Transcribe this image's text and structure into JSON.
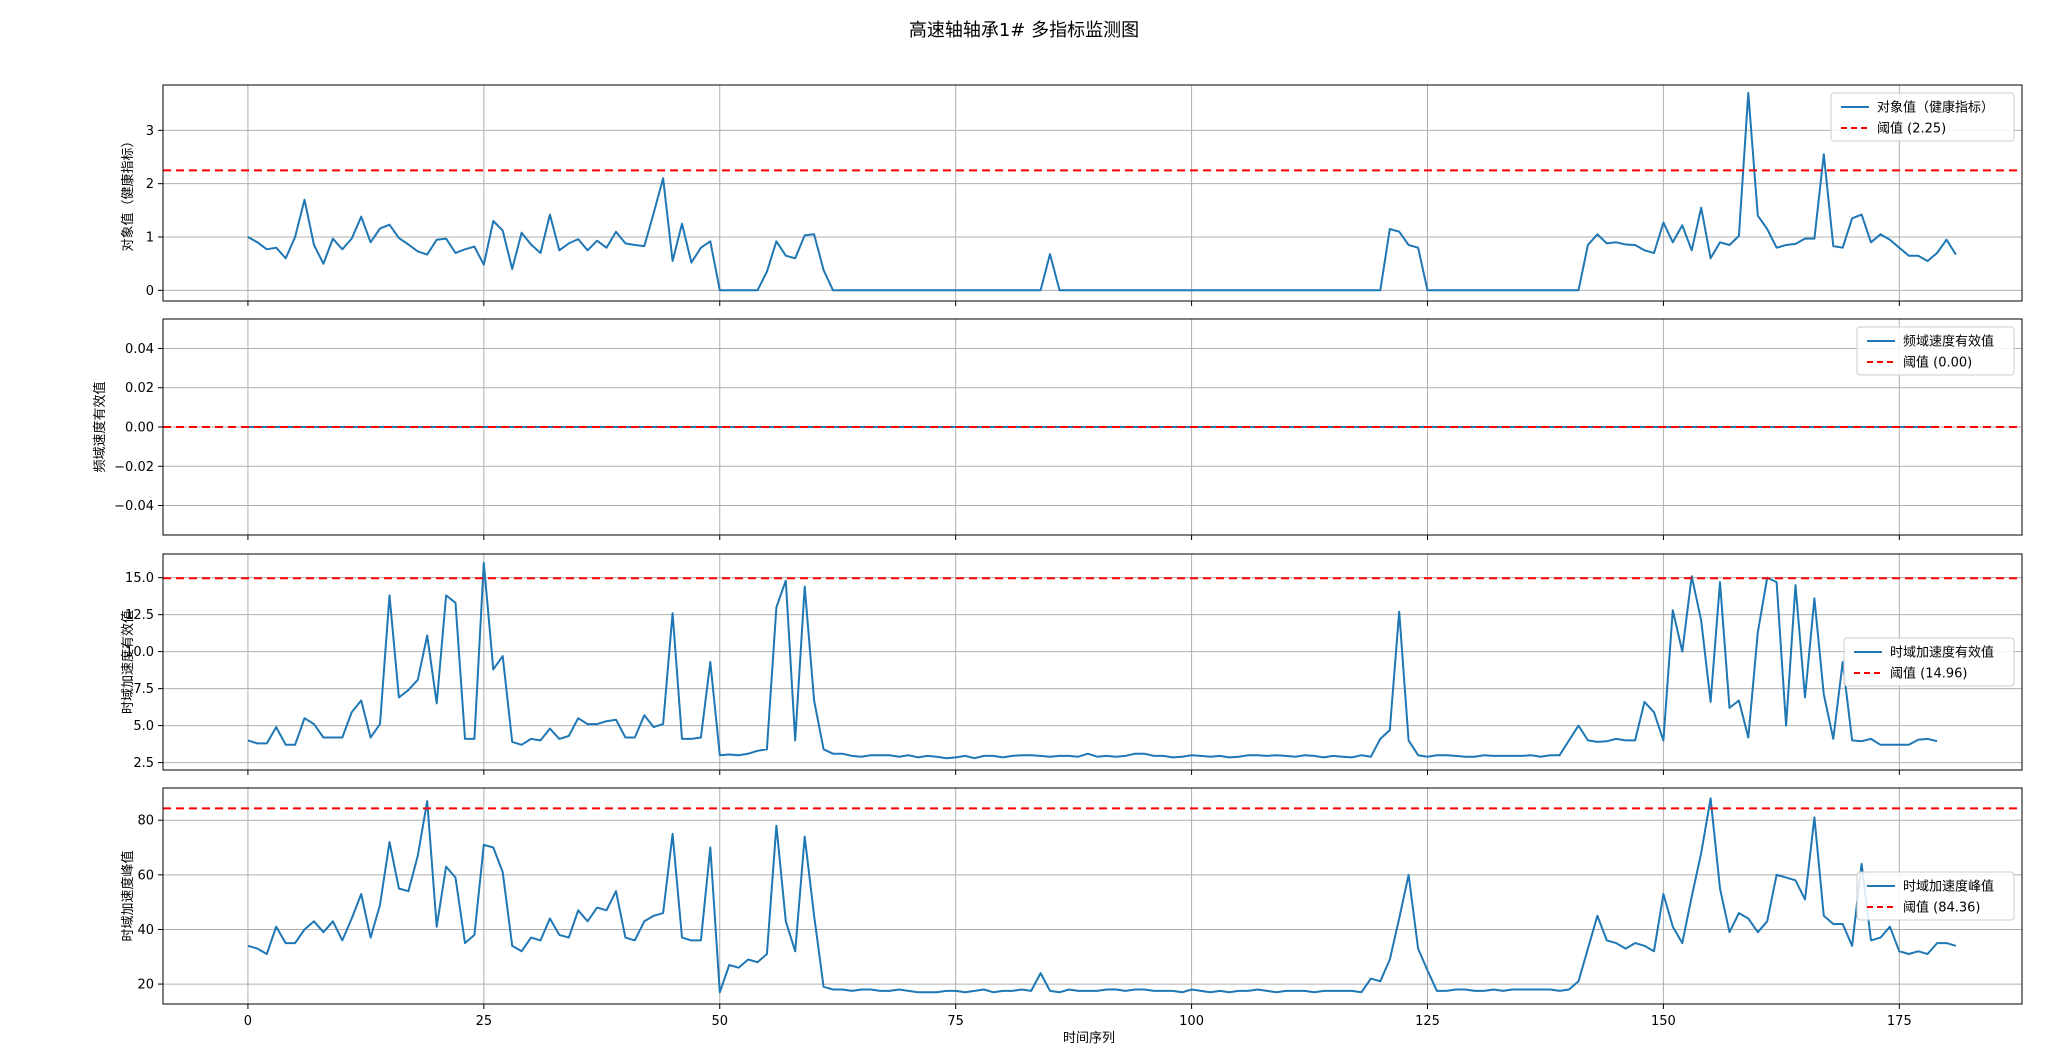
{
  "title": "高速轴轴承1# 多指标监测图",
  "xlabel": "时间序列",
  "colors": {
    "series": "#1f77b4",
    "threshold": "#ff0000",
    "grid": "#b0b0b0"
  },
  "chart_data": [
    {
      "type": "line",
      "ylabel": "对象值（健康指标）",
      "legend_placement": "top-right",
      "series_name": "对象值（健康指标）",
      "threshold": 2.25,
      "threshold_label": "阈值 (2.25)",
      "xlim": [
        -9,
        188
      ],
      "ylim": [
        -0.2,
        3.85
      ],
      "xticks": [
        0,
        25,
        50,
        75,
        100,
        125,
        150,
        175
      ],
      "yticks": [
        0,
        1,
        2,
        3
      ],
      "grid": true,
      "y": [
        1.0,
        0.9,
        0.77,
        0.8,
        0.6,
        1.0,
        1.7,
        0.85,
        0.5,
        0.97,
        0.77,
        0.97,
        1.38,
        0.9,
        1.16,
        1.23,
        0.98,
        0.86,
        0.73,
        0.67,
        0.95,
        0.97,
        0.7,
        0.77,
        0.82,
        0.48,
        1.3,
        1.12,
        0.4,
        1.08,
        0.86,
        0.7,
        1.42,
        0.75,
        0.88,
        0.96,
        0.75,
        0.93,
        0.8,
        1.1,
        0.88,
        0.85,
        0.83,
        1.45,
        2.1,
        0.55,
        1.25,
        0.52,
        0.8,
        0.92,
        0,
        0,
        0,
        0,
        0,
        0.35,
        0.92,
        0.65,
        0.6,
        1.03,
        1.05,
        0.38,
        0,
        0,
        0,
        0,
        0,
        0,
        0,
        0,
        0,
        0,
        0,
        0,
        0,
        0,
        0,
        0,
        0,
        0,
        0,
        0,
        0,
        0,
        0,
        0.68,
        0,
        0,
        0,
        0,
        0,
        0,
        0,
        0,
        0,
        0,
        0,
        0,
        0,
        0,
        0,
        0,
        0,
        0,
        0,
        0,
        0,
        0,
        0,
        0,
        0,
        0,
        0,
        0,
        0,
        0,
        0,
        0,
        0,
        0,
        0,
        1.15,
        1.1,
        0.85,
        0.8,
        0,
        0,
        0,
        0,
        0,
        0,
        0,
        0,
        0,
        0,
        0,
        0,
        0,
        0,
        0,
        0,
        0,
        0.85,
        1.05,
        0.88,
        0.9,
        0.86,
        0.85,
        0.75,
        0.7,
        1.27,
        0.9,
        1.22,
        0.75,
        1.55,
        0.6,
        0.9,
        0.85,
        1.02,
        3.7,
        1.4,
        1.15,
        0.8,
        0.85,
        0.87,
        0.97,
        0.97,
        2.55,
        0.83,
        0.8,
        1.35,
        1.42,
        0.9,
        1.05,
        0.95,
        0.8,
        0.65,
        0.65,
        0.55,
        0.7,
        0.95,
        0.67
      ]
    },
    {
      "type": "line",
      "ylabel": "频域速度有效值",
      "legend_placement": "top-right",
      "series_name": "频域速度有效值",
      "threshold": 0.0,
      "threshold_label": "阈值 (0.00)",
      "xlim": [
        -9,
        188
      ],
      "ylim": [
        -0.055,
        0.055
      ],
      "xticks": [
        0,
        25,
        50,
        75,
        100,
        125,
        150,
        175
      ],
      "yticks": [
        -0.04,
        -0.02,
        0.0,
        0.02,
        0.04
      ],
      "ytick_labels": [
        "−0.04",
        "−0.02",
        "0.00",
        "0.02",
        "0.04"
      ],
      "grid": true,
      "y_constant": 0
    },
    {
      "type": "line",
      "ylabel": "时域加速度有效值",
      "legend_placement": "center-right",
      "series_name": "时域加速度有效值",
      "threshold": 14.96,
      "threshold_label": "阈值 (14.96)",
      "xlim": [
        -9,
        188
      ],
      "ylim": [
        2.0,
        16.6
      ],
      "xticks": [
        0,
        25,
        50,
        75,
        100,
        125,
        150,
        175
      ],
      "yticks": [
        2.5,
        5.0,
        7.5,
        10.0,
        12.5,
        15.0
      ],
      "ytick_labels": [
        "2.5",
        "5.0",
        "7.5",
        "10.0",
        "12.5",
        "15.0"
      ],
      "grid": true,
      "y": [
        4.0,
        3.8,
        3.8,
        4.9,
        3.7,
        3.7,
        5.5,
        5.1,
        4.2,
        4.2,
        4.2,
        5.9,
        6.7,
        4.2,
        5.1,
        13.8,
        6.9,
        7.4,
        8.1,
        11.1,
        6.5,
        13.8,
        13.3,
        4.1,
        4.1,
        16.0,
        8.8,
        9.7,
        3.9,
        3.7,
        4.1,
        4.0,
        4.8,
        4.1,
        4.3,
        5.5,
        5.1,
        5.1,
        5.3,
        5.4,
        4.2,
        4.2,
        5.7,
        4.9,
        5.1,
        12.6,
        4.1,
        4.1,
        4.2,
        9.3,
        3.0,
        3.05,
        3.0,
        3.1,
        3.3,
        3.4,
        13.0,
        14.8,
        4.0,
        14.4,
        6.7,
        3.4,
        3.1,
        3.1,
        2.95,
        2.9,
        3.0,
        3.0,
        3.0,
        2.9,
        3.0,
        2.85,
        2.95,
        2.9,
        2.8,
        2.85,
        2.95,
        2.8,
        2.95,
        2.95,
        2.85,
        2.95,
        3.0,
        3.0,
        2.95,
        2.9,
        2.95,
        2.95,
        2.9,
        3.1,
        2.9,
        2.95,
        2.9,
        2.95,
        3.1,
        3.1,
        2.95,
        2.95,
        2.85,
        2.9,
        3.0,
        2.95,
        2.9,
        2.95,
        2.85,
        2.9,
        3.0,
        3.0,
        2.95,
        3.0,
        2.95,
        2.9,
        3.0,
        2.95,
        2.85,
        2.95,
        2.9,
        2.85,
        3.0,
        2.9,
        4.1,
        4.7,
        12.7,
        4.0,
        3.0,
        2.9,
        3.0,
        3.0,
        2.95,
        2.9,
        2.9,
        3.0,
        2.95,
        2.95,
        2.95,
        2.95,
        3.0,
        2.9,
        3.0,
        3.0,
        4.0,
        5.0,
        4.0,
        3.9,
        3.95,
        4.1,
        4.0,
        4.0,
        6.6,
        5.9,
        4.0,
        12.8,
        10.0,
        15.1,
        12.1,
        6.6,
        14.7,
        6.2,
        6.7,
        4.2,
        11.3,
        15.0,
        14.7,
        5.0,
        14.5,
        6.9,
        13.6,
        7.1,
        4.1,
        9.3,
        4.0,
        3.95,
        4.1,
        3.7,
        3.7,
        3.7,
        3.7,
        4.05,
        4.1,
        3.95
      ]
    },
    {
      "type": "line",
      "ylabel": "时域加速度峰值",
      "legend_placement": "center-right",
      "series_name": "时域加速度峰值",
      "threshold": 84.36,
      "threshold_label": "阈值 (84.36)",
      "xlim": [
        -9,
        188
      ],
      "ylim": [
        12.7,
        91.8
      ],
      "xticks": [
        0,
        25,
        50,
        75,
        100,
        125,
        150,
        175
      ],
      "yticks": [
        20,
        40,
        60,
        80
      ],
      "grid": true,
      "y": [
        34,
        33,
        31,
        41,
        35,
        35,
        40,
        43,
        39,
        43,
        36,
        44,
        53,
        37,
        49,
        72,
        55,
        54,
        67,
        87,
        41,
        63,
        59,
        35,
        38,
        71,
        70,
        61,
        34,
        32,
        37,
        36,
        44,
        38,
        37,
        47,
        43,
        48,
        47,
        54,
        37,
        36,
        43,
        45,
        46,
        75,
        37,
        36,
        36,
        70,
        17,
        27,
        26,
        29,
        28,
        31,
        78,
        43,
        32,
        74,
        45,
        19,
        18,
        18,
        17.5,
        18,
        18,
        17.5,
        17.5,
        18,
        17.5,
        17,
        17,
        17,
        17.5,
        17.5,
        17,
        17.5,
        18,
        17,
        17.5,
        17.5,
        18,
        17.5,
        24,
        17.5,
        17,
        18,
        17.5,
        17.5,
        17.5,
        18,
        18,
        17.5,
        18,
        18,
        17.5,
        17.5,
        17.5,
        17,
        18,
        17.5,
        17,
        17.5,
        17,
        17.5,
        17.5,
        18,
        17.5,
        17,
        17.5,
        17.5,
        17.5,
        17,
        17.5,
        17.5,
        17.5,
        17.5,
        17,
        22,
        21,
        29,
        44,
        60,
        33,
        25,
        17.5,
        17.5,
        18,
        18,
        17.5,
        17.5,
        18,
        17.5,
        18,
        18,
        18,
        18,
        18,
        17.5,
        18,
        21,
        33,
        45,
        36,
        35,
        33,
        35,
        34,
        32,
        53,
        41,
        35,
        52,
        68,
        88,
        55,
        39,
        46,
        44,
        39,
        43,
        60,
        59,
        58,
        51,
        81,
        45,
        42,
        42,
        34,
        64,
        36,
        37,
        41,
        32,
        31,
        32,
        31,
        35,
        35,
        34
      ]
    }
  ]
}
